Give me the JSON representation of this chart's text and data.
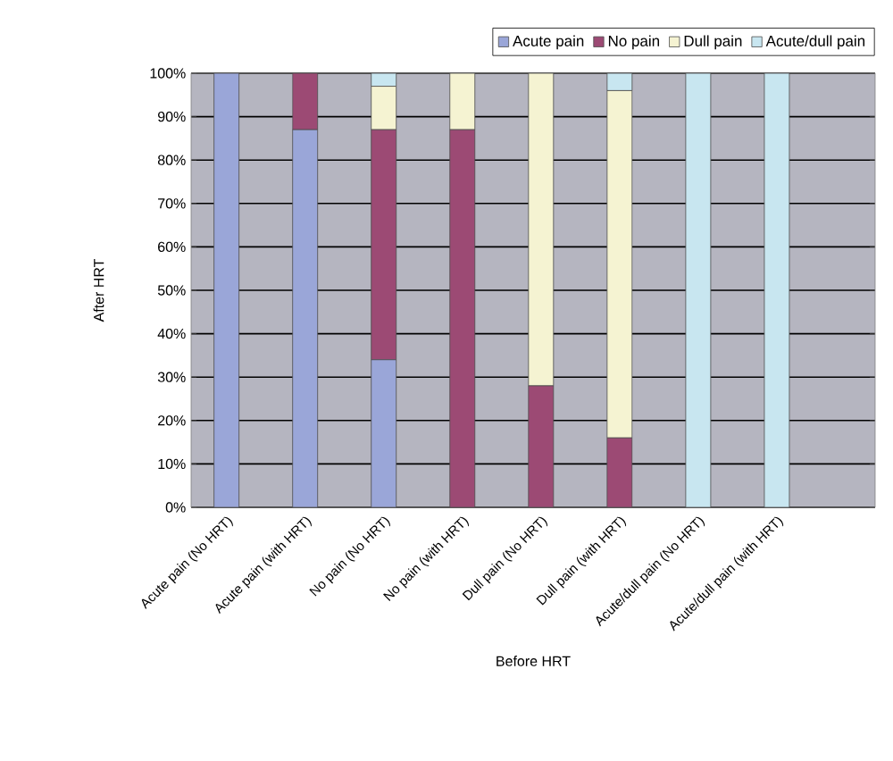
{
  "chart_data": {
    "type": "bar",
    "stacked": true,
    "xlabel": "Before HRT",
    "ylabel": "After HRT",
    "categories": [
      "Acute pain (No HRT)",
      "Acute pain (with HRT)",
      "No pain (No HRT)",
      "No pain (with HRT)",
      "Dull pain (No HRT)",
      "Dull pain (with HRT)",
      "Acute/dull pain (No HRT)",
      "Acute/dull pain (with HRT)"
    ],
    "series": [
      {
        "name": "Acute pain",
        "color": "#9aa6d8",
        "values": [
          100,
          87,
          34,
          0,
          0,
          0,
          0,
          0
        ]
      },
      {
        "name": "No pain",
        "color": "#9c4a74",
        "values": [
          0,
          13,
          53,
          87,
          28,
          16,
          0,
          0
        ]
      },
      {
        "name": "Dull pain",
        "color": "#f5f3d2",
        "values": [
          0,
          0,
          10,
          13,
          72,
          80,
          0,
          0
        ]
      },
      {
        "name": "Acute/dull pain",
        "color": "#c8e6f0",
        "values": [
          0,
          0,
          3,
          0,
          0,
          4,
          100,
          100
        ]
      }
    ],
    "ylim": [
      0,
      100
    ],
    "yticks": [
      {
        "value": 0,
        "label": "0%"
      },
      {
        "value": 10,
        "label": "10%"
      },
      {
        "value": 20,
        "label": "20%"
      },
      {
        "value": 30,
        "label": "30%"
      },
      {
        "value": 40,
        "label": "40%"
      },
      {
        "value": 50,
        "label": "50%"
      },
      {
        "value": 60,
        "label": "60%"
      },
      {
        "value": 70,
        "label": "70%"
      },
      {
        "value": 80,
        "label": "80%"
      },
      {
        "value": 90,
        "label": "90%"
      },
      {
        "value": 100,
        "label": "100%"
      }
    ],
    "grid": "y",
    "legend": "top"
  }
}
